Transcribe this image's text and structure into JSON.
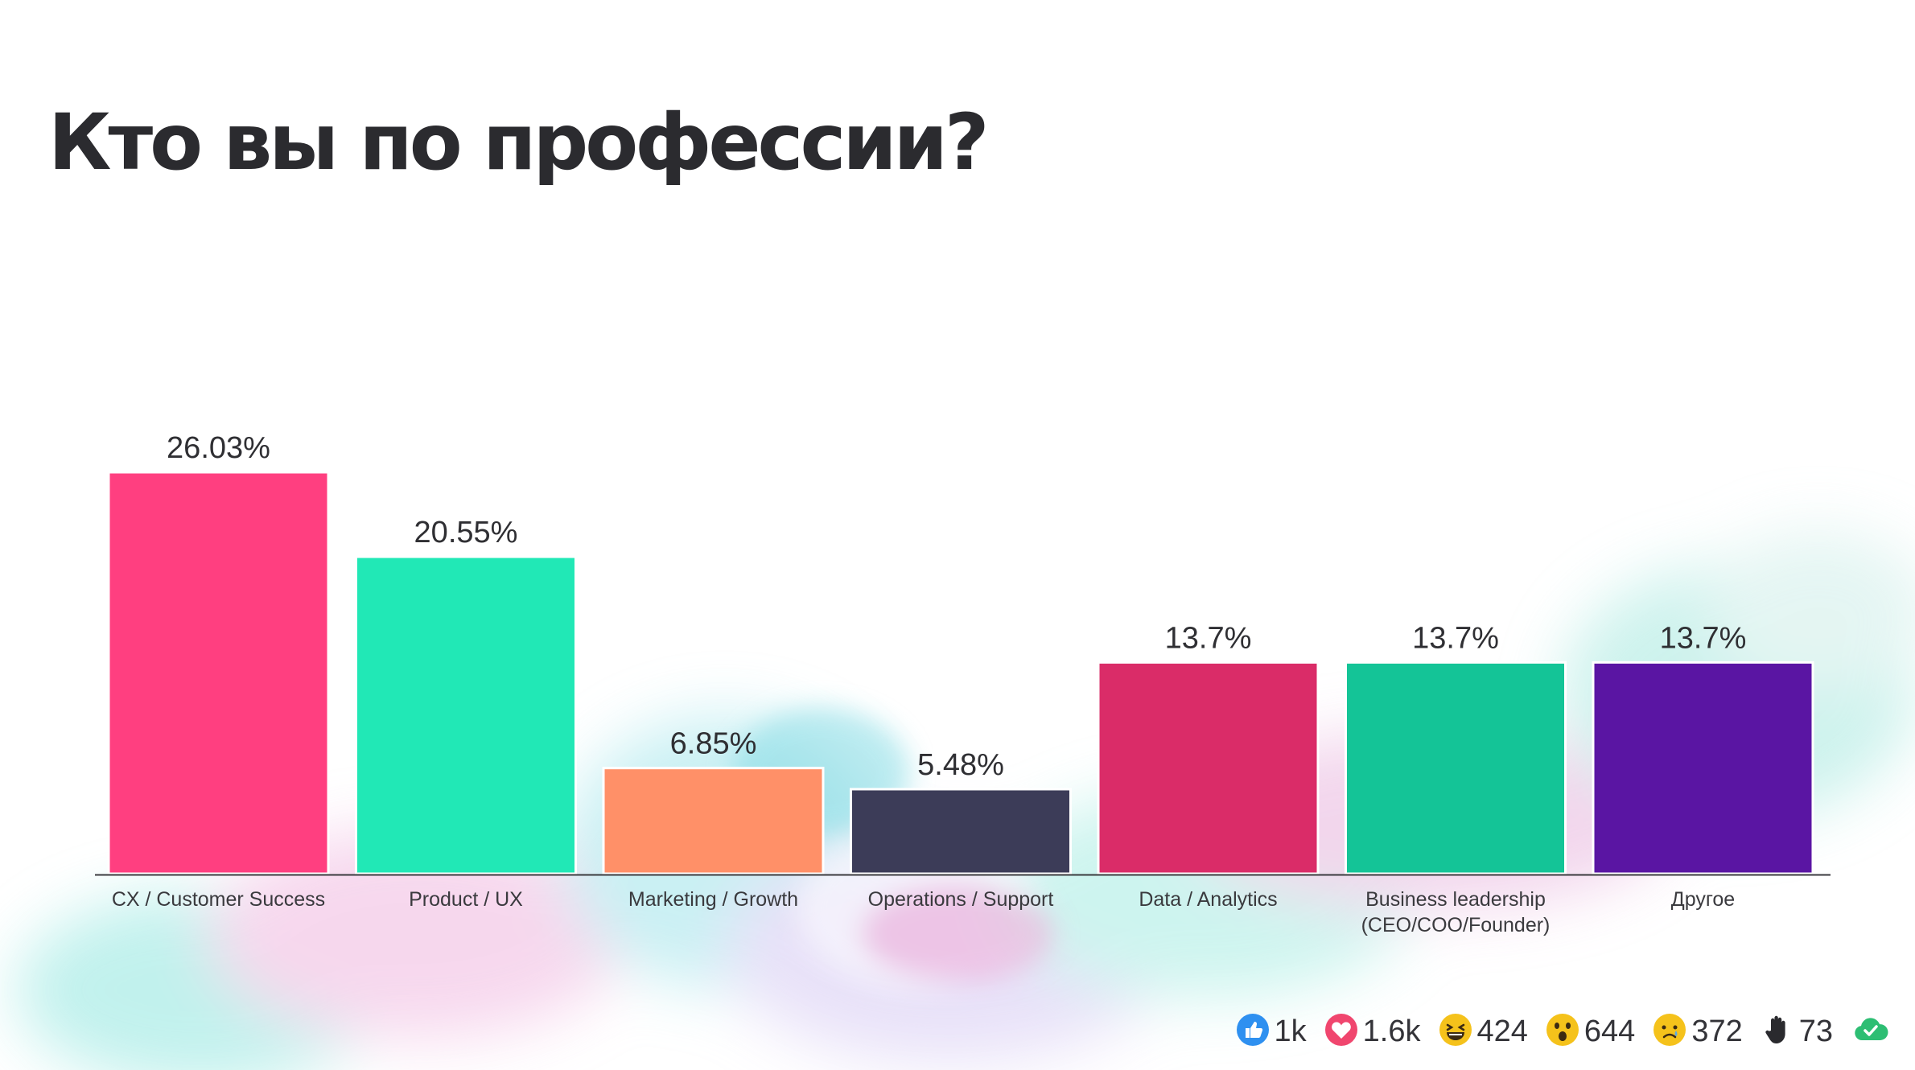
{
  "slide": {
    "title": "Кто вы по профессии?"
  },
  "chart_data": {
    "type": "bar",
    "categories": [
      "CX / Customer Success",
      "Product / UX",
      "Marketing / Growth",
      "Operations / Support",
      "Data / Analytics",
      "Business leadership\n(CEO/COO/Founder)",
      "Другое"
    ],
    "values": [
      26.03,
      20.55,
      6.85,
      5.48,
      13.7,
      13.7,
      13.7
    ],
    "data_labels": [
      "26.03%",
      "20.55%",
      "6.85%",
      "5.48%",
      "13.7%",
      "13.7%",
      "13.7%"
    ],
    "colors": [
      "#FF3F80",
      "#21E8B6",
      "#FF9068",
      "#3C3C58",
      "#DA2C68",
      "#14C497",
      "#5A15A3"
    ],
    "ylim": [
      0,
      26.03
    ],
    "grid": false,
    "legend": "none"
  },
  "reactions": [
    {
      "icon": "thumbs-up-icon",
      "count": "1k",
      "color": "#2E90F0"
    },
    {
      "icon": "heart-icon",
      "count": "1.6k",
      "color": "#F0466E"
    },
    {
      "icon": "laughing-face-icon",
      "count": "424",
      "color": "#F5C21B"
    },
    {
      "icon": "surprised-face-icon",
      "count": "644",
      "color": "#F5C21B"
    },
    {
      "icon": "sad-face-icon",
      "count": "372",
      "color": "#F5C21B"
    },
    {
      "icon": "raised-hand-icon",
      "count": "73",
      "color": "#2A2A2E"
    },
    {
      "icon": "check-cloud-icon",
      "color": "#2DBE73"
    }
  ]
}
